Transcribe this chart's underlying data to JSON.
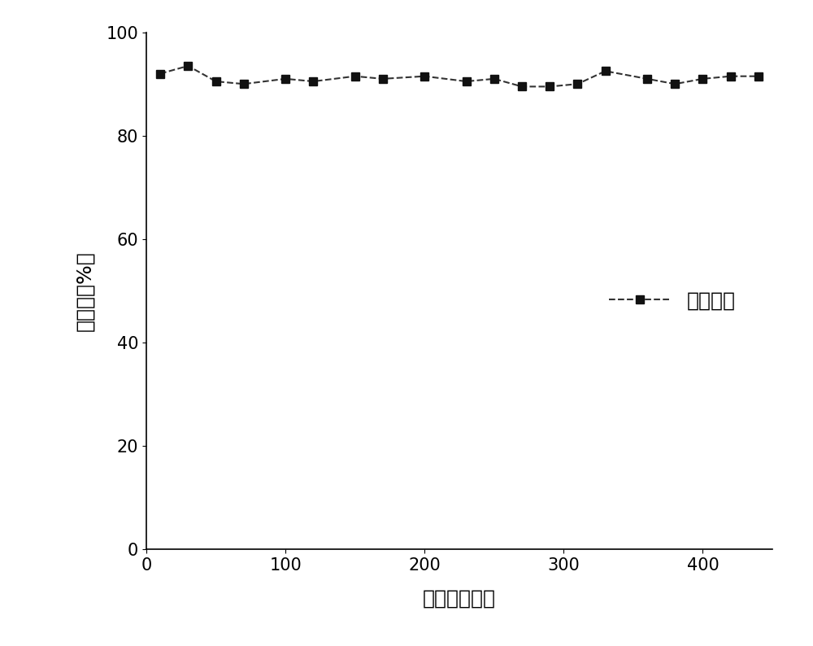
{
  "x": [
    10,
    30,
    50,
    70,
    100,
    120,
    150,
    170,
    200,
    230,
    250,
    270,
    290,
    310,
    330,
    360,
    380,
    400,
    420,
    440
  ],
  "y": [
    92,
    93.5,
    90.5,
    90,
    91,
    90.5,
    91.5,
    91,
    91.5,
    90.5,
    91,
    89.5,
    89.5,
    90,
    92.5,
    91,
    90,
    91,
    91.5,
    91.5
  ],
  "xlabel": "时间（小时）",
  "ylabel": "转化率（%）",
  "legend_label": "实施例三",
  "xlim": [
    0,
    450
  ],
  "ylim": [
    0,
    100
  ],
  "xticks": [
    0,
    100,
    200,
    300,
    400
  ],
  "yticks": [
    0,
    20,
    40,
    60,
    80,
    100
  ],
  "line_color": "#333333",
  "marker": "s",
  "marker_color": "#111111",
  "marker_size": 7,
  "line_width": 1.5,
  "line_style": "--",
  "background_color": "#ffffff",
  "ylabel_fontsize": 18,
  "xlabel_fontsize": 18,
  "tick_fontsize": 15,
  "legend_fontsize": 18
}
